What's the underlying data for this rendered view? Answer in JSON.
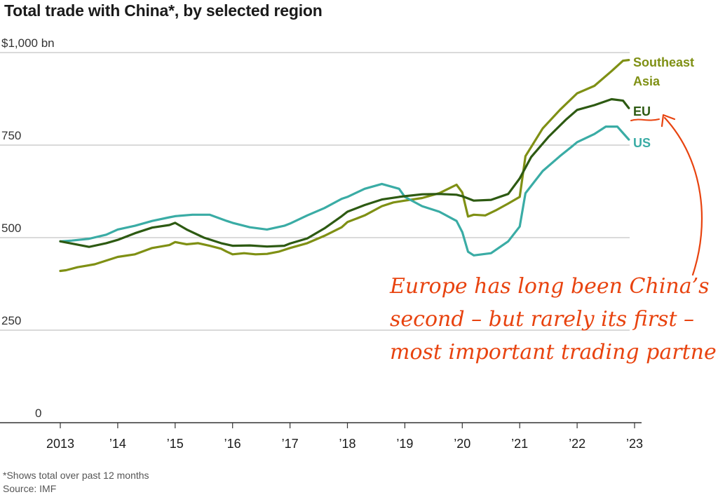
{
  "title": "Total trade with China*, by selected region",
  "footnote": "*Shows total over past 12 months",
  "source": "Source: IMF",
  "annotation": {
    "lines": [
      "Europe has long been China’s",
      "second – but rarely its first –",
      "most important trading partner"
    ],
    "color": "#e8430f"
  },
  "chart_data": {
    "type": "line",
    "title": "Total trade with China*, by selected region",
    "xlabel": "",
    "ylabel": "",
    "xlim": [
      2013,
      2023
    ],
    "ylim": [
      0,
      1000
    ],
    "y_ticks": [
      0,
      250,
      500,
      750,
      1000
    ],
    "y_tick_labels": [
      "0",
      "250",
      "500",
      "750",
      "$1,000 bn"
    ],
    "x_ticks": [
      2013,
      2014,
      2015,
      2016,
      2017,
      2018,
      2019,
      2020,
      2021,
      2022,
      2023
    ],
    "x_tick_labels": [
      "2013",
      "’14",
      "’15",
      "’16",
      "’17",
      "’18",
      "’19",
      "’20",
      "’21",
      "’22",
      "’23"
    ],
    "grid": "horizontal",
    "legend": "inline at line ends",
    "series": [
      {
        "name": "Southeast Asia",
        "color": "#7f9014",
        "x": [
          2013.0,
          2013.1,
          2013.3,
          2013.6,
          2013.9,
          2014.0,
          2014.3,
          2014.6,
          2014.9,
          2015.0,
          2015.2,
          2015.4,
          2015.6,
          2015.8,
          2015.9,
          2016.0,
          2016.2,
          2016.4,
          2016.6,
          2016.8,
          2017.0,
          2017.3,
          2017.6,
          2017.9,
          2018.0,
          2018.3,
          2018.6,
          2018.8,
          2019.0,
          2019.3,
          2019.6,
          2019.9,
          2020.0,
          2020.1,
          2020.2,
          2020.4,
          2020.6,
          2020.8,
          2021.0,
          2021.1,
          2021.4,
          2021.7,
          2021.9,
          2022.0,
          2022.3,
          2022.6,
          2022.8,
          2022.9
        ],
        "values": [
          410,
          412,
          420,
          428,
          443,
          448,
          455,
          472,
          480,
          488,
          482,
          485,
          478,
          470,
          462,
          455,
          458,
          455,
          456,
          462,
          472,
          485,
          505,
          528,
          542,
          560,
          585,
          595,
          600,
          607,
          620,
          643,
          622,
          557,
          562,
          560,
          575,
          592,
          610,
          720,
          795,
          845,
          875,
          890,
          910,
          950,
          978,
          980
        ]
      },
      {
        "name": "EU",
        "color": "#2d5a12",
        "x": [
          2013.0,
          2013.2,
          2013.5,
          2013.8,
          2014.0,
          2014.3,
          2014.6,
          2014.9,
          2015.0,
          2015.2,
          2015.5,
          2015.8,
          2016.0,
          2016.3,
          2016.6,
          2016.9,
          2017.0,
          2017.3,
          2017.6,
          2017.9,
          2018.0,
          2018.3,
          2018.6,
          2018.9,
          2019.0,
          2019.3,
          2019.6,
          2019.9,
          2020.0,
          2020.2,
          2020.5,
          2020.8,
          2021.0,
          2021.2,
          2021.5,
          2021.8,
          2022.0,
          2022.3,
          2022.6,
          2022.8,
          2022.9
        ],
        "values": [
          490,
          484,
          475,
          485,
          494,
          512,
          527,
          534,
          540,
          522,
          500,
          485,
          478,
          479,
          476,
          478,
          484,
          498,
          525,
          558,
          570,
          588,
          603,
          610,
          612,
          617,
          618,
          616,
          612,
          600,
          602,
          618,
          660,
          718,
          772,
          818,
          845,
          858,
          874,
          870,
          850
        ]
      },
      {
        "name": "US",
        "color": "#3aaca5",
        "x": [
          2013.0,
          2013.2,
          2013.5,
          2013.8,
          2014.0,
          2014.3,
          2014.6,
          2014.9,
          2015.0,
          2015.3,
          2015.6,
          2015.9,
          2016.0,
          2016.3,
          2016.6,
          2016.9,
          2017.0,
          2017.3,
          2017.6,
          2017.9,
          2018.0,
          2018.3,
          2018.6,
          2018.9,
          2019.0,
          2019.3,
          2019.6,
          2019.9,
          2020.0,
          2020.1,
          2020.2,
          2020.5,
          2020.8,
          2021.0,
          2021.1,
          2021.4,
          2021.7,
          2021.9,
          2022.0,
          2022.3,
          2022.5,
          2022.7,
          2022.9
        ],
        "values": [
          490,
          492,
          497,
          508,
          522,
          532,
          545,
          555,
          558,
          562,
          562,
          545,
          540,
          528,
          522,
          532,
          538,
          560,
          580,
          605,
          610,
          632,
          645,
          632,
          610,
          585,
          570,
          545,
          515,
          462,
          452,
          458,
          490,
          530,
          620,
          680,
          720,
          745,
          758,
          780,
          800,
          800,
          765
        ]
      }
    ]
  }
}
